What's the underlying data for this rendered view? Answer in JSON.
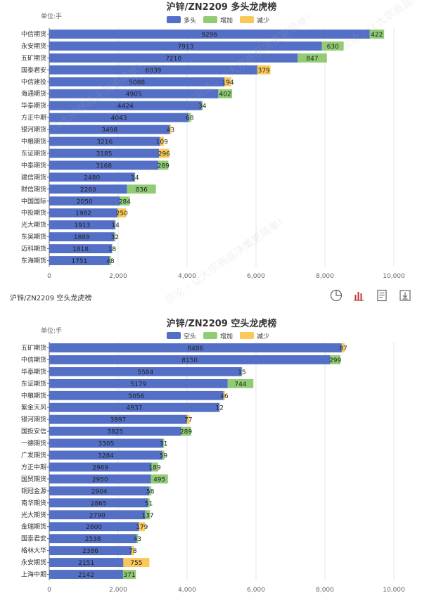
{
  "colors": {
    "long": "#5470c6",
    "increase": "#91cc75",
    "decrease": "#fac858"
  },
  "section_title": "沪锌/ZN2209 空头龙虎榜",
  "watermark_text": "宗论 - 让大宗商品决策更简单!",
  "toolbar_icons": [
    "pie-chart-icon",
    "bar-chart-icon",
    "data-view-icon",
    "download-icon"
  ],
  "chart_data": [
    {
      "type": "bar",
      "orientation": "horizontal",
      "stacked": true,
      "title": "沪锌/ZN2209 多头龙虎榜",
      "unit_label": "单位:手",
      "legend": [
        "多头",
        "增加",
        "减少"
      ],
      "legend_placement": "top-center",
      "grid": true,
      "xlim": [
        0,
        10000
      ],
      "x_ticks": [
        "0",
        "2,000",
        "4,000",
        "6,000",
        "8,000",
        "10,000"
      ],
      "x_tick_values": [
        0,
        2000,
        4000,
        6000,
        8000,
        10000
      ],
      "categories": [
        "中信期货",
        "永安期货",
        "五矿期货",
        "国泰君安",
        "中信建投",
        "海通期货",
        "华泰期货",
        "方正中期",
        "银河期货",
        "中粮期货",
        "东证期货",
        "中泰期货",
        "建信期货",
        "财信期货",
        "中国国际",
        "中投期货",
        "光大期货",
        "东吴期货",
        "迈科期货",
        "东海期货"
      ],
      "series": [
        {
          "name": "多头",
          "values": [
            9296,
            7913,
            7210,
            6039,
            5088,
            4905,
            4424,
            4043,
            3498,
            3216,
            3185,
            3168,
            2480,
            2260,
            2050,
            1982,
            1913,
            1889,
            1818,
            1751
          ]
        },
        {
          "name": "增加",
          "values": [
            422,
            630,
            847,
            0,
            0,
            402,
            34,
            68,
            0,
            0,
            0,
            289,
            14,
            836,
            284,
            0,
            14,
            32,
            18,
            48
          ]
        },
        {
          "name": "减少",
          "values": [
            0,
            0,
            0,
            379,
            194,
            0,
            0,
            0,
            43,
            109,
            296,
            0,
            0,
            0,
            0,
            250,
            0,
            0,
            0,
            0
          ]
        }
      ]
    },
    {
      "type": "bar",
      "orientation": "horizontal",
      "stacked": true,
      "title": "沪锌/ZN2209 空头龙虎榜",
      "unit_label": "单位:手",
      "legend": [
        "空头",
        "增加",
        "减少"
      ],
      "legend_placement": "top-center",
      "grid": true,
      "xlim": [
        0,
        10000
      ],
      "x_ticks": [
        "0",
        "2,000",
        "4,000",
        "6,000",
        "8,000",
        "10,000"
      ],
      "x_tick_values": [
        0,
        2000,
        4000,
        6000,
        8000,
        10000
      ],
      "categories": [
        "五矿期货",
        "中信期货",
        "华泰期货",
        "东证期货",
        "中粮期货",
        "紫金天风",
        "银河期货",
        "国投安信",
        "一德期货",
        "广发期货",
        "方正中期",
        "国贸期货",
        "铜冠金源",
        "南华期货",
        "光大期货",
        "金瑞期货",
        "国泰君安",
        "格林大华",
        "永安期货",
        "上海中期"
      ],
      "series": [
        {
          "name": "空头",
          "values": [
            8486,
            8150,
            5584,
            5179,
            5056,
            4937,
            3997,
            3825,
            3305,
            3284,
            2969,
            2950,
            2904,
            2865,
            2790,
            2600,
            2538,
            2386,
            2151,
            2142
          ]
        },
        {
          "name": "增加",
          "values": [
            0,
            299,
            15,
            744,
            0,
            12,
            0,
            289,
            31,
            59,
            189,
            495,
            58,
            51,
            137,
            0,
            43,
            0,
            0,
            371
          ]
        },
        {
          "name": "减少",
          "values": [
            87,
            0,
            0,
            0,
            46,
            0,
            77,
            0,
            0,
            0,
            0,
            0,
            0,
            0,
            0,
            179,
            0,
            78,
            755,
            0
          ]
        }
      ]
    }
  ]
}
